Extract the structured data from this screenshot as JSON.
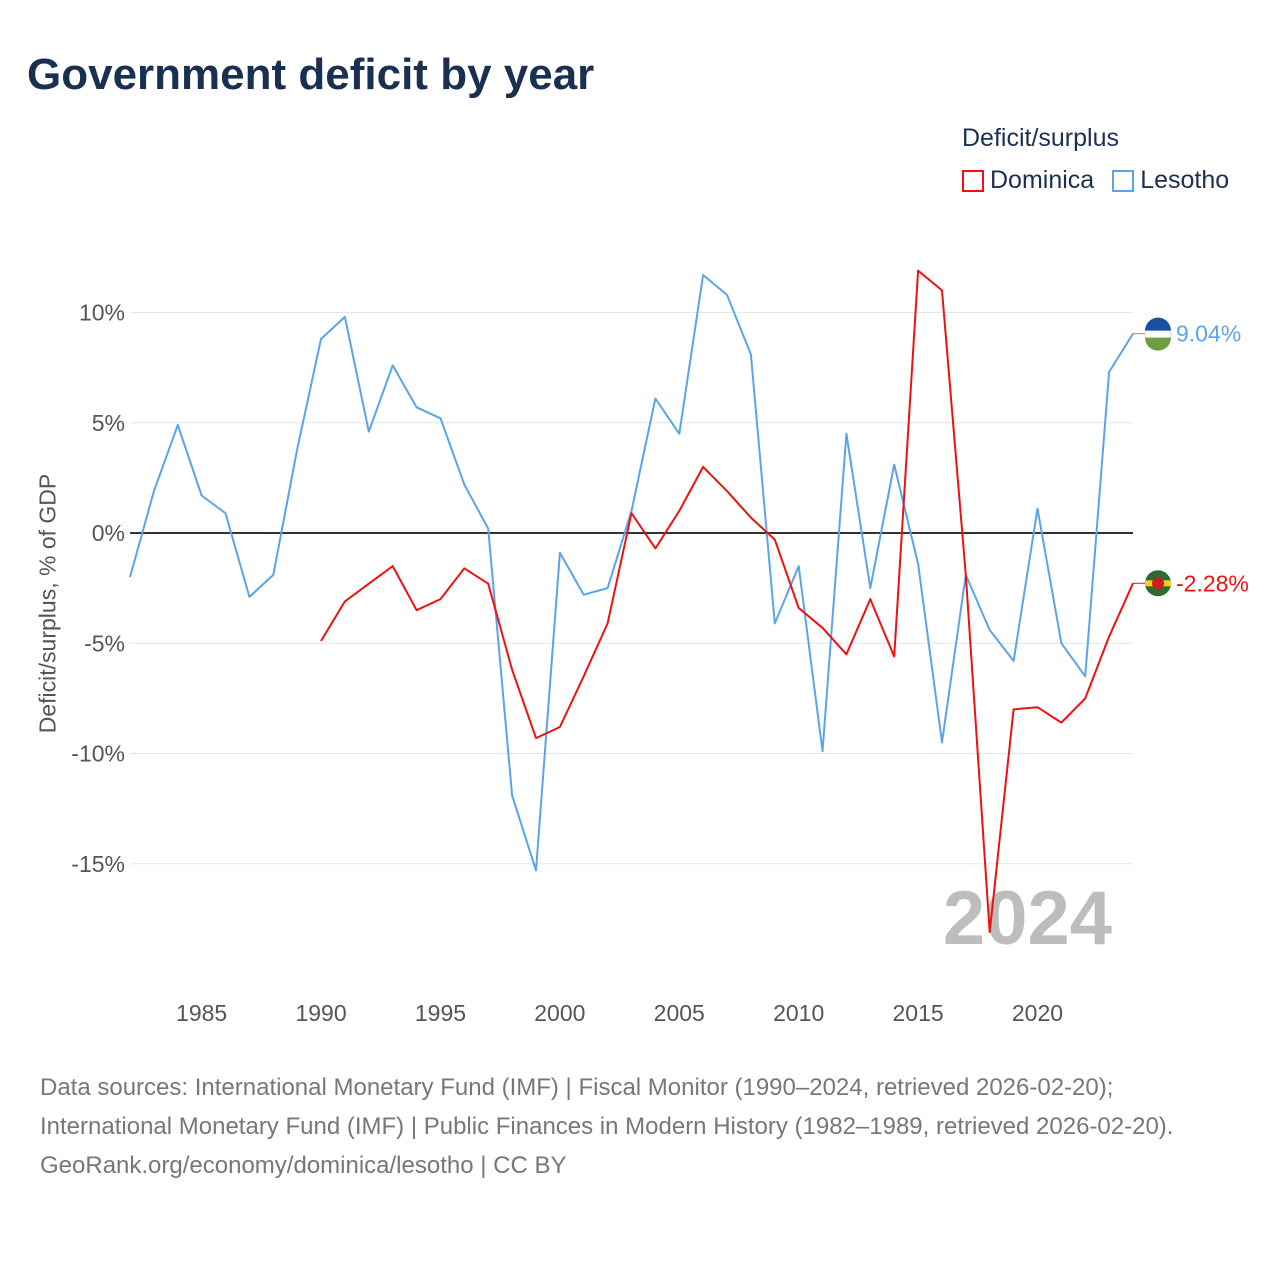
{
  "title": "Government deficit by year",
  "legend": {
    "title": "Deficit/surplus",
    "items": [
      {
        "name": "Dominica",
        "color": "#ee1111"
      },
      {
        "name": "Lesotho",
        "color": "#5ba4ea"
      }
    ]
  },
  "chart_data": {
    "type": "line",
    "title": "Government deficit by year",
    "ylabel": "Deficit/surplus, % of GDP",
    "xlabel": "",
    "xlim": [
      1982,
      2024
    ],
    "ylim": [
      -19,
      12.5
    ],
    "x_ticks": [
      1985,
      1990,
      1995,
      2000,
      2005,
      2010,
      2015,
      2020
    ],
    "y_ticks": [
      10,
      5,
      0,
      -5,
      -10,
      -15
    ],
    "y_tick_labels": [
      "10%",
      "5%",
      "0%",
      "-5%",
      "-10%",
      "-15%"
    ],
    "year_watermark": "2024",
    "series": [
      {
        "name": "Lesotho",
        "color": "#5ba4ea",
        "start": 1982,
        "end_label": "9.04%",
        "values": [
          -2.0,
          1.9,
          4.9,
          1.7,
          0.9,
          -2.9,
          -1.9,
          3.8,
          8.8,
          9.8,
          4.6,
          7.6,
          5.7,
          5.2,
          2.2,
          0.2,
          -11.9,
          -15.3,
          -0.9,
          -2.8,
          -2.5,
          1.0,
          6.1,
          4.5,
          11.7,
          10.8,
          8.1,
          -4.1,
          -1.5,
          -9.9,
          4.5,
          -2.5,
          3.1,
          -1.4,
          -9.5,
          -1.9,
          -4.4,
          -5.8,
          1.1,
          -5.0,
          -6.5,
          7.3,
          9.04
        ]
      },
      {
        "name": "Dominica",
        "color": "#ee1111",
        "start": 1990,
        "end_label": "-2.28%",
        "values": [
          -4.9,
          -3.1,
          -2.3,
          -1.5,
          -3.5,
          -3.0,
          -1.6,
          -2.3,
          -6.2,
          -9.3,
          -8.8,
          -6.5,
          -4.1,
          0.9,
          -0.7,
          1.0,
          3.0,
          1.9,
          0.7,
          -0.3,
          -3.4,
          -4.3,
          -5.5,
          -3.0,
          -5.6,
          11.9,
          11.0,
          -1.9,
          -18.1,
          -8.0,
          -7.9,
          -8.6,
          -7.5,
          -4.7,
          -2.28
        ]
      }
    ]
  },
  "footer": {
    "line1": "Data sources: International Monetary Fund (IMF) | Fiscal Monitor (1990–2024, retrieved 2026-02-20); International Monetary Fund (IMF) | Public Finances in Modern History (1982–1989, retrieved 2026-02-20).",
    "line2": "GeoRank.org/economy/dominica/lesotho | CC BY"
  }
}
